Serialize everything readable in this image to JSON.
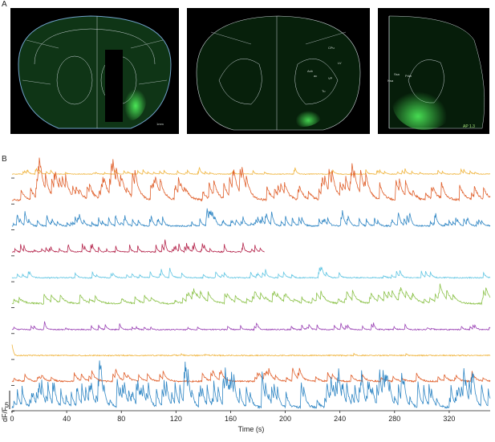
{
  "panels": {
    "a_label": "A",
    "b_label": "B"
  },
  "histology": {
    "scale_label": "1mm",
    "region_labels": [
      "CPu",
      "Acb",
      "ac",
      "LV",
      "VP",
      "Tu",
      "Nsa",
      "Ssa",
      "Pdm"
    ],
    "ap_label": "AP 1.3",
    "colors": {
      "background": "#000000",
      "fluorescence": "#3fd14a",
      "outline": "#d8dde0",
      "section": "#0c2a10"
    }
  },
  "chart_data": {
    "type": "line",
    "title": "",
    "xlabel": "Time (s)",
    "ylabel": "dF/F",
    "xlim": [
      0,
      350
    ],
    "xticks": [
      "0",
      "40",
      "80",
      "120",
      "160",
      "200",
      "240",
      "280",
      "320"
    ],
    "xtick_values": [
      0,
      40,
      80,
      120,
      160,
      200,
      240,
      280,
      320
    ],
    "scale_bar": {
      "label": "5",
      "value": 5
    },
    "grid": false,
    "legend": "none",
    "series": [
      {
        "color": "#f0b43c",
        "baseline": 0.2,
        "peak_rate": 0.18,
        "peak_amp": 1.1,
        "decay": 1.2,
        "end": 350,
        "seed": 11
      },
      {
        "color": "#e0602c",
        "baseline": 0.6,
        "peak_rate": 0.22,
        "peak_amp": 3.6,
        "decay": 3.0,
        "end": 350,
        "seed": 23
      },
      {
        "color": "#2f86c4",
        "baseline": 0.4,
        "peak_rate": 0.3,
        "peak_amp": 2.0,
        "decay": 1.5,
        "end": 350,
        "seed": 37
      },
      {
        "color": "#b5264d",
        "baseline": 0.3,
        "peak_rate": 0.25,
        "peak_amp": 1.8,
        "decay": 1.0,
        "end": 185,
        "seed": 41
      },
      {
        "color": "#62c6e3",
        "baseline": 0.3,
        "peak_rate": 0.14,
        "peak_amp": 1.6,
        "decay": 1.5,
        "end": 350,
        "seed": 53
      },
      {
        "color": "#8cc24a",
        "baseline": 0.4,
        "peak_rate": 0.2,
        "peak_amp": 2.2,
        "decay": 3.5,
        "end": 350,
        "seed": 61
      },
      {
        "color": "#9b43b5",
        "baseline": 0.3,
        "peak_rate": 0.12,
        "peak_amp": 1.3,
        "decay": 1.2,
        "end": 350,
        "seed": 73
      },
      {
        "color": "#f0b43c",
        "baseline": 0.3,
        "peak_rate": 0.02,
        "peak_amp": 0.6,
        "decay": 1.0,
        "end": 350,
        "seed": 83
      },
      {
        "color": "#e0602c",
        "baseline": 0.4,
        "peak_rate": 0.16,
        "peak_amp": 2.0,
        "decay": 2.5,
        "end": 350,
        "seed": 97
      },
      {
        "color": "#2f86c4",
        "baseline": 0.6,
        "peak_rate": 0.45,
        "peak_amp": 4.8,
        "decay": 1.8,
        "end": 350,
        "seed": 109
      }
    ]
  }
}
